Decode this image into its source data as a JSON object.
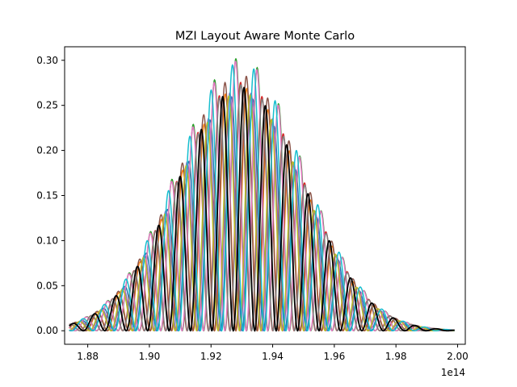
{
  "chart_data": {
    "type": "line",
    "title": "MZI Layout Aware Monte Carlo",
    "xlabel": "",
    "ylabel": "",
    "x_offset_label": "1e14",
    "x_unit_scale": 100000000000000.0,
    "xlim": [
      1.8725,
      2.0025
    ],
    "ylim": [
      -0.015,
      0.315
    ],
    "x_ticks": [
      1.88,
      1.9,
      1.92,
      1.94,
      1.96,
      1.98,
      2.0
    ],
    "x_tick_labels": [
      "1.88",
      "1.90",
      "1.92",
      "1.94",
      "1.96",
      "1.98",
      "2.00"
    ],
    "y_ticks": [
      0.0,
      0.05,
      0.1,
      0.15,
      0.2,
      0.25,
      0.3
    ],
    "y_tick_labels": [
      "0.00",
      "0.05",
      "0.10",
      "0.15",
      "0.20",
      "0.25",
      "0.30"
    ],
    "grid": false,
    "legend": "none",
    "x_range": [
      1.874,
      1.999
    ],
    "envelope": {
      "center": 1.9295,
      "sigma": 0.0205,
      "peak": 0.27
    },
    "fringe_period": 0.00695,
    "series": [
      {
        "color": "#1f77b4",
        "scale": 0.97,
        "phase": 0.9
      },
      {
        "color": "#ff7f0e",
        "scale": 1.0,
        "phase": 1.8
      },
      {
        "color": "#2ca02c",
        "scale": 1.12,
        "phase": 3.4
      },
      {
        "color": "#d62728",
        "scale": 1.02,
        "phase": 2.7
      },
      {
        "color": "#9467bd",
        "scale": 0.99,
        "phase": 4.3
      },
      {
        "color": "#8c564b",
        "scale": 1.05,
        "phase": 5.0
      },
      {
        "color": "#e377c2",
        "scale": 1.11,
        "phase": 0.3
      },
      {
        "color": "#7f7f7f",
        "scale": 1.01,
        "phase": 5.8
      },
      {
        "color": "#bcbd22",
        "scale": 0.98,
        "phase": 1.3
      },
      {
        "color": "#17becf",
        "scale": 1.1,
        "phase": 3.9
      },
      {
        "color": "#000000",
        "scale": 1.0,
        "phase": 2.2
      }
    ]
  }
}
